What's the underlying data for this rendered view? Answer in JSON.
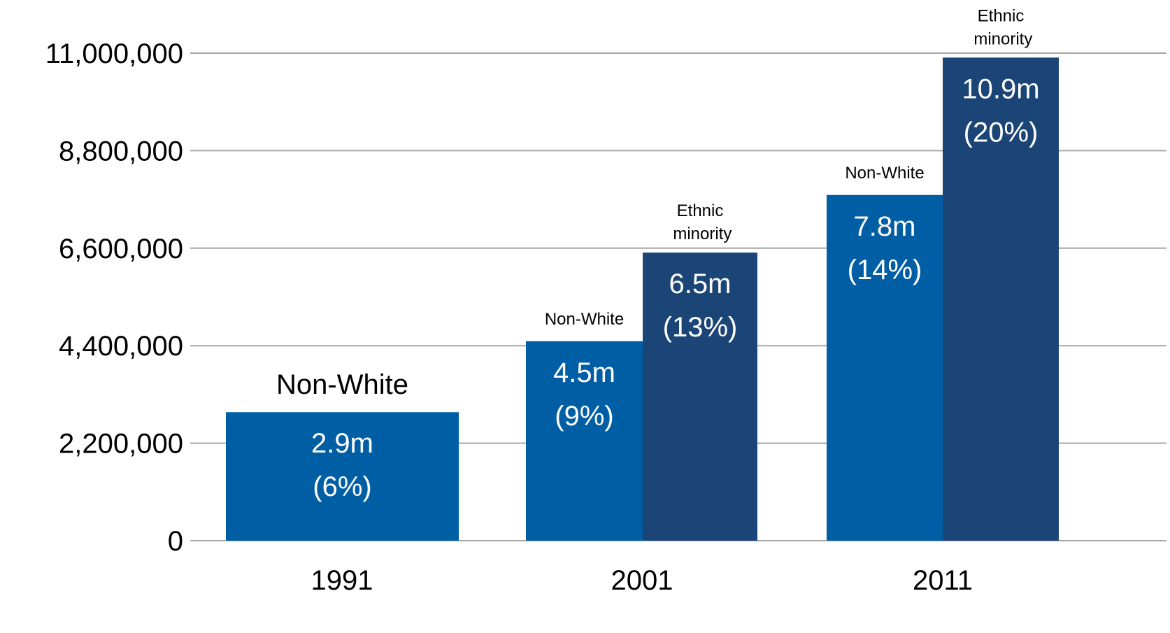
{
  "chart_data": {
    "type": "bar",
    "categories": [
      "1991",
      "2001",
      "2011"
    ],
    "ylim": [
      0,
      11000000
    ],
    "yticks": [
      0,
      2200000,
      4400000,
      6600000,
      8800000,
      11000000
    ],
    "ytick_labels": [
      "0",
      "2,200,000",
      "4,400,000",
      "6,600,000",
      "8,800,000",
      "11,000,000"
    ],
    "grid": true,
    "bars": [
      {
        "category": "1991",
        "series": "Non-White",
        "value": 2900000,
        "value_label": "2.9m",
        "pct_label": "(6%)",
        "top_label": "Non-White",
        "color": "#005ea5"
      },
      {
        "category": "2001",
        "series": "Non-White",
        "value": 4500000,
        "value_label": "4.5m",
        "pct_label": "(9%)",
        "top_label": "Non-White",
        "color": "#005ea5"
      },
      {
        "category": "2001",
        "series": "Ethnic minority",
        "value": 6500000,
        "value_label": "6.5m",
        "pct_label": "(13%)",
        "top_label": "Ethnic minority",
        "color": "#1b4576"
      },
      {
        "category": "2011",
        "series": "Non-White",
        "value": 7800000,
        "value_label": "7.8m",
        "pct_label": "(14%)",
        "top_label": "Non-White",
        "color": "#005ea5"
      },
      {
        "category": "2011",
        "series": "Ethnic minority",
        "value": 10900000,
        "value_label": "10.9m",
        "pct_label": "(20%)",
        "top_label": "Ethnic minority",
        "color": "#1b4576"
      }
    ],
    "colors": {
      "non_white": "#005ea5",
      "ethnic_minority": "#1b4576",
      "gridline": "#a6a6a6",
      "text": "#000000",
      "bar_text": "#ffffff"
    }
  }
}
